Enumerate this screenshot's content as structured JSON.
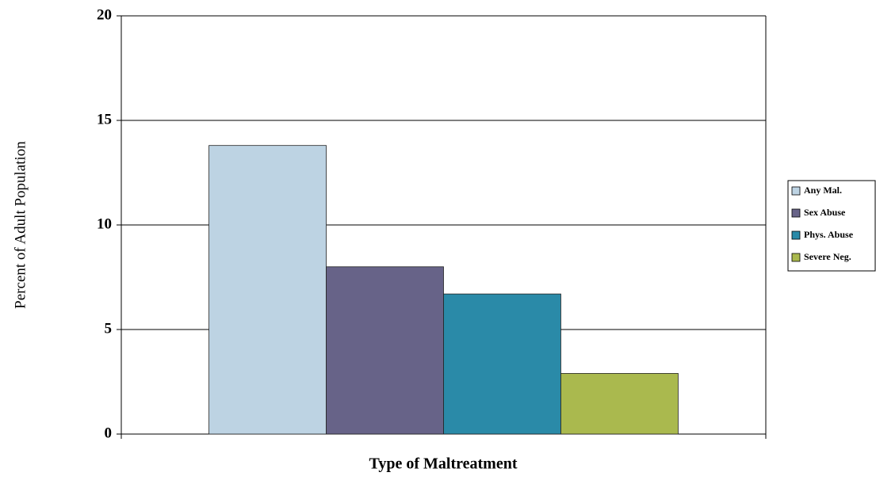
{
  "chart_data": {
    "type": "bar",
    "x_label": "Type of Maltreatment",
    "y_label": "Percent of Adult Population",
    "categories": [
      null
    ],
    "series": [
      {
        "name": "Any Mal.",
        "color": "#bdd3e3",
        "values": [
          13.8
        ]
      },
      {
        "name": "Sex Abuse",
        "color": "#676388",
        "values": [
          8.0
        ]
      },
      {
        "name": "Phys. Abuse",
        "color": "#2a8aa8",
        "values": [
          6.7
        ]
      },
      {
        "name": "Severe Neg.",
        "color": "#aab94e",
        "values": [
          2.9
        ]
      }
    ],
    "ylim": [
      0,
      20
    ],
    "yticks": [
      0,
      5,
      10,
      15,
      20
    ],
    "grid": true,
    "legend": "right"
  }
}
